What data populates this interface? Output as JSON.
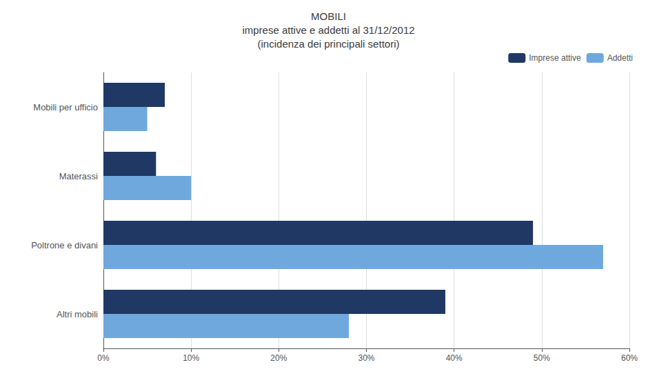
{
  "chart_data": {
    "type": "bar",
    "orientation": "horizontal",
    "title": "MOBILI\nimprese attive e addetti al 31/12/2012\n(incidenza dei principali settori)",
    "categories": [
      "Mobili per ufficio",
      "Materassi",
      "Poltrone e divani",
      "Altri mobili"
    ],
    "series": [
      {
        "name": "Imprese attive",
        "color": "#1F3864",
        "values": [
          7,
          6,
          49,
          39
        ]
      },
      {
        "name": "Addetti",
        "color": "#6FA8DC",
        "values": [
          5,
          10,
          57,
          28
        ]
      }
    ],
    "xlim": [
      0,
      60
    ],
    "xticks": [
      {
        "value": 0,
        "label": "0%"
      },
      {
        "value": 10,
        "label": "10%"
      },
      {
        "value": 20,
        "label": "20%"
      },
      {
        "value": 30,
        "label": "30%"
      },
      {
        "value": 40,
        "label": "40%"
      },
      {
        "value": 50,
        "label": "50%"
      },
      {
        "value": 60,
        "label": "60%"
      }
    ],
    "grid": true,
    "legend": "upper right"
  }
}
